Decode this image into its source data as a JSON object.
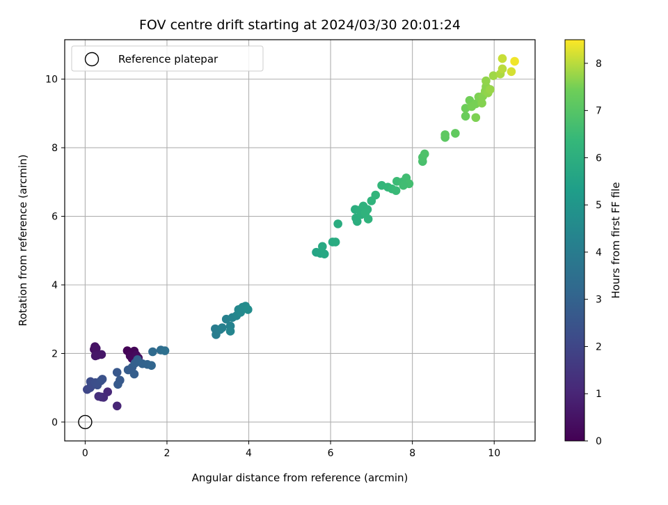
{
  "chart_data": {
    "type": "scatter",
    "title": "FOV centre drift starting at 2024/03/30 20:01:24",
    "xlabel": "Angular distance from reference (arcmin)",
    "ylabel": "Rotation from reference (arcmin)",
    "xlim": [
      -0.5,
      11
    ],
    "ylim": [
      -0.55,
      11.15
    ],
    "xticks": [
      0,
      2,
      4,
      6,
      8,
      10
    ],
    "yticks": [
      0,
      2,
      4,
      6,
      8,
      10
    ],
    "grid": true,
    "legend": {
      "location": "upper-left",
      "entries": [
        "Reference platepar"
      ]
    },
    "reference_point": {
      "x": 0,
      "y": 0
    },
    "colorbar": {
      "label": "Hours from first FF file",
      "range": [
        0,
        8.5
      ],
      "ticks": [
        0,
        1,
        2,
        3,
        4,
        5,
        6,
        7,
        8
      ],
      "colormap": "viridis"
    },
    "points": [
      {
        "x": 0.24,
        "y": 2.2,
        "h": 0.45
      },
      {
        "x": 0.22,
        "y": 2.12,
        "h": 0.4
      },
      {
        "x": 0.27,
        "y": 2.15,
        "h": 0.5
      },
      {
        "x": 0.3,
        "y": 1.95,
        "h": 0.55
      },
      {
        "x": 0.25,
        "y": 1.93,
        "h": 0.6
      },
      {
        "x": 0.4,
        "y": 1.97,
        "h": 0.6
      },
      {
        "x": 1.03,
        "y": 2.08,
        "h": 0.05
      },
      {
        "x": 1.2,
        "y": 2.07,
        "h": 0.1
      },
      {
        "x": 1.1,
        "y": 1.93,
        "h": 0.15
      },
      {
        "x": 1.15,
        "y": 1.85,
        "h": 0.2
      },
      {
        "x": 1.25,
        "y": 1.95,
        "h": 0.25
      },
      {
        "x": 1.3,
        "y": 1.87,
        "h": 0.3
      },
      {
        "x": 0.78,
        "y": 0.47,
        "h": 1.0
      },
      {
        "x": 0.55,
        "y": 0.88,
        "h": 1.1
      },
      {
        "x": 0.4,
        "y": 0.73,
        "h": 1.15
      },
      {
        "x": 0.45,
        "y": 0.72,
        "h": 1.2
      },
      {
        "x": 0.33,
        "y": 0.75,
        "h": 1.3
      },
      {
        "x": 0.05,
        "y": 0.95,
        "h": 2.0
      },
      {
        "x": 0.12,
        "y": 1.0,
        "h": 2.05
      },
      {
        "x": 0.15,
        "y": 1.05,
        "h": 2.1
      },
      {
        "x": 0.2,
        "y": 1.1,
        "h": 2.15
      },
      {
        "x": 0.13,
        "y": 1.18,
        "h": 2.2
      },
      {
        "x": 0.25,
        "y": 1.15,
        "h": 2.25
      },
      {
        "x": 0.3,
        "y": 1.08,
        "h": 2.3
      },
      {
        "x": 0.38,
        "y": 1.2,
        "h": 2.35
      },
      {
        "x": 0.42,
        "y": 1.25,
        "h": 2.4
      },
      {
        "x": 0.78,
        "y": 1.45,
        "h": 2.6
      },
      {
        "x": 0.85,
        "y": 1.22,
        "h": 2.65
      },
      {
        "x": 0.8,
        "y": 1.1,
        "h": 2.7
      },
      {
        "x": 1.05,
        "y": 1.52,
        "h": 2.75
      },
      {
        "x": 1.15,
        "y": 1.6,
        "h": 2.8
      },
      {
        "x": 1.2,
        "y": 1.4,
        "h": 2.85
      },
      {
        "x": 1.22,
        "y": 1.72,
        "h": 2.9
      },
      {
        "x": 1.28,
        "y": 1.82,
        "h": 2.95
      },
      {
        "x": 1.4,
        "y": 1.7,
        "h": 3.0
      },
      {
        "x": 1.52,
        "y": 1.68,
        "h": 3.05
      },
      {
        "x": 1.62,
        "y": 1.65,
        "h": 3.1
      },
      {
        "x": 1.65,
        "y": 2.05,
        "h": 3.3
      },
      {
        "x": 1.85,
        "y": 2.1,
        "h": 3.4
      },
      {
        "x": 1.95,
        "y": 2.08,
        "h": 3.5
      },
      {
        "x": 3.18,
        "y": 2.72,
        "h": 4.0
      },
      {
        "x": 3.2,
        "y": 2.55,
        "h": 4.05
      },
      {
        "x": 3.3,
        "y": 2.7,
        "h": 4.1
      },
      {
        "x": 3.35,
        "y": 2.75,
        "h": 4.15
      },
      {
        "x": 3.45,
        "y": 3.0,
        "h": 4.2
      },
      {
        "x": 3.55,
        "y": 2.8,
        "h": 4.25
      },
      {
        "x": 3.6,
        "y": 3.05,
        "h": 4.3
      },
      {
        "x": 3.55,
        "y": 2.65,
        "h": 4.35
      },
      {
        "x": 3.7,
        "y": 3.1,
        "h": 4.4
      },
      {
        "x": 3.75,
        "y": 3.28,
        "h": 4.45
      },
      {
        "x": 3.8,
        "y": 3.2,
        "h": 4.5
      },
      {
        "x": 3.85,
        "y": 3.35,
        "h": 4.55
      },
      {
        "x": 3.92,
        "y": 3.38,
        "h": 4.6
      },
      {
        "x": 3.98,
        "y": 3.28,
        "h": 4.65
      },
      {
        "x": 5.65,
        "y": 4.95,
        "h": 5.6
      },
      {
        "x": 5.75,
        "y": 4.92,
        "h": 5.65
      },
      {
        "x": 5.85,
        "y": 4.9,
        "h": 5.7
      },
      {
        "x": 5.8,
        "y": 5.12,
        "h": 5.75
      },
      {
        "x": 6.05,
        "y": 5.25,
        "h": 5.8
      },
      {
        "x": 6.12,
        "y": 5.25,
        "h": 5.85
      },
      {
        "x": 6.18,
        "y": 5.78,
        "h": 5.9
      },
      {
        "x": 6.6,
        "y": 6.2,
        "h": 5.95
      },
      {
        "x": 6.62,
        "y": 5.95,
        "h": 6.0
      },
      {
        "x": 6.65,
        "y": 5.85,
        "h": 6.0
      },
      {
        "x": 6.7,
        "y": 6.18,
        "h": 6.05
      },
      {
        "x": 6.75,
        "y": 6.05,
        "h": 6.05
      },
      {
        "x": 6.8,
        "y": 6.3,
        "h": 6.1
      },
      {
        "x": 6.9,
        "y": 6.2,
        "h": 6.1
      },
      {
        "x": 6.85,
        "y": 6.1,
        "h": 6.15
      },
      {
        "x": 6.92,
        "y": 5.92,
        "h": 6.15
      },
      {
        "x": 7.0,
        "y": 6.45,
        "h": 6.2
      },
      {
        "x": 7.1,
        "y": 6.62,
        "h": 6.25
      },
      {
        "x": 7.25,
        "y": 6.9,
        "h": 6.3
      },
      {
        "x": 7.4,
        "y": 6.85,
        "h": 6.35
      },
      {
        "x": 7.5,
        "y": 6.8,
        "h": 6.4
      },
      {
        "x": 7.6,
        "y": 6.75,
        "h": 6.45
      },
      {
        "x": 7.62,
        "y": 7.02,
        "h": 6.5
      },
      {
        "x": 7.75,
        "y": 7.0,
        "h": 6.55
      },
      {
        "x": 7.85,
        "y": 7.12,
        "h": 6.6
      },
      {
        "x": 7.92,
        "y": 6.95,
        "h": 6.65
      },
      {
        "x": 7.78,
        "y": 6.9,
        "h": 6.6
      },
      {
        "x": 8.25,
        "y": 7.6,
        "h": 6.75
      },
      {
        "x": 8.25,
        "y": 7.72,
        "h": 6.8
      },
      {
        "x": 8.3,
        "y": 7.82,
        "h": 6.85
      },
      {
        "x": 8.8,
        "y": 8.3,
        "h": 7.1
      },
      {
        "x": 8.8,
        "y": 8.38,
        "h": 7.15
      },
      {
        "x": 9.05,
        "y": 8.42,
        "h": 7.2
      },
      {
        "x": 9.3,
        "y": 8.92,
        "h": 7.35
      },
      {
        "x": 9.3,
        "y": 9.15,
        "h": 7.4
      },
      {
        "x": 9.4,
        "y": 9.38,
        "h": 7.45
      },
      {
        "x": 9.45,
        "y": 9.2,
        "h": 7.5
      },
      {
        "x": 9.55,
        "y": 9.28,
        "h": 7.5
      },
      {
        "x": 9.55,
        "y": 8.88,
        "h": 7.55
      },
      {
        "x": 9.62,
        "y": 9.48,
        "h": 7.55
      },
      {
        "x": 9.7,
        "y": 9.3,
        "h": 7.6
      },
      {
        "x": 9.72,
        "y": 9.5,
        "h": 7.6
      },
      {
        "x": 9.78,
        "y": 9.65,
        "h": 7.65
      },
      {
        "x": 9.8,
        "y": 9.78,
        "h": 7.65
      },
      {
        "x": 9.85,
        "y": 9.6,
        "h": 7.7
      },
      {
        "x": 9.8,
        "y": 9.95,
        "h": 7.7
      },
      {
        "x": 9.9,
        "y": 9.7,
        "h": 7.75
      },
      {
        "x": 9.98,
        "y": 10.1,
        "h": 7.8
      },
      {
        "x": 10.15,
        "y": 10.15,
        "h": 7.9
      },
      {
        "x": 10.2,
        "y": 10.3,
        "h": 8.0
      },
      {
        "x": 10.2,
        "y": 10.6,
        "h": 8.1
      },
      {
        "x": 10.42,
        "y": 10.22,
        "h": 8.2
      },
      {
        "x": 10.5,
        "y": 10.52,
        "h": 8.4
      }
    ]
  }
}
